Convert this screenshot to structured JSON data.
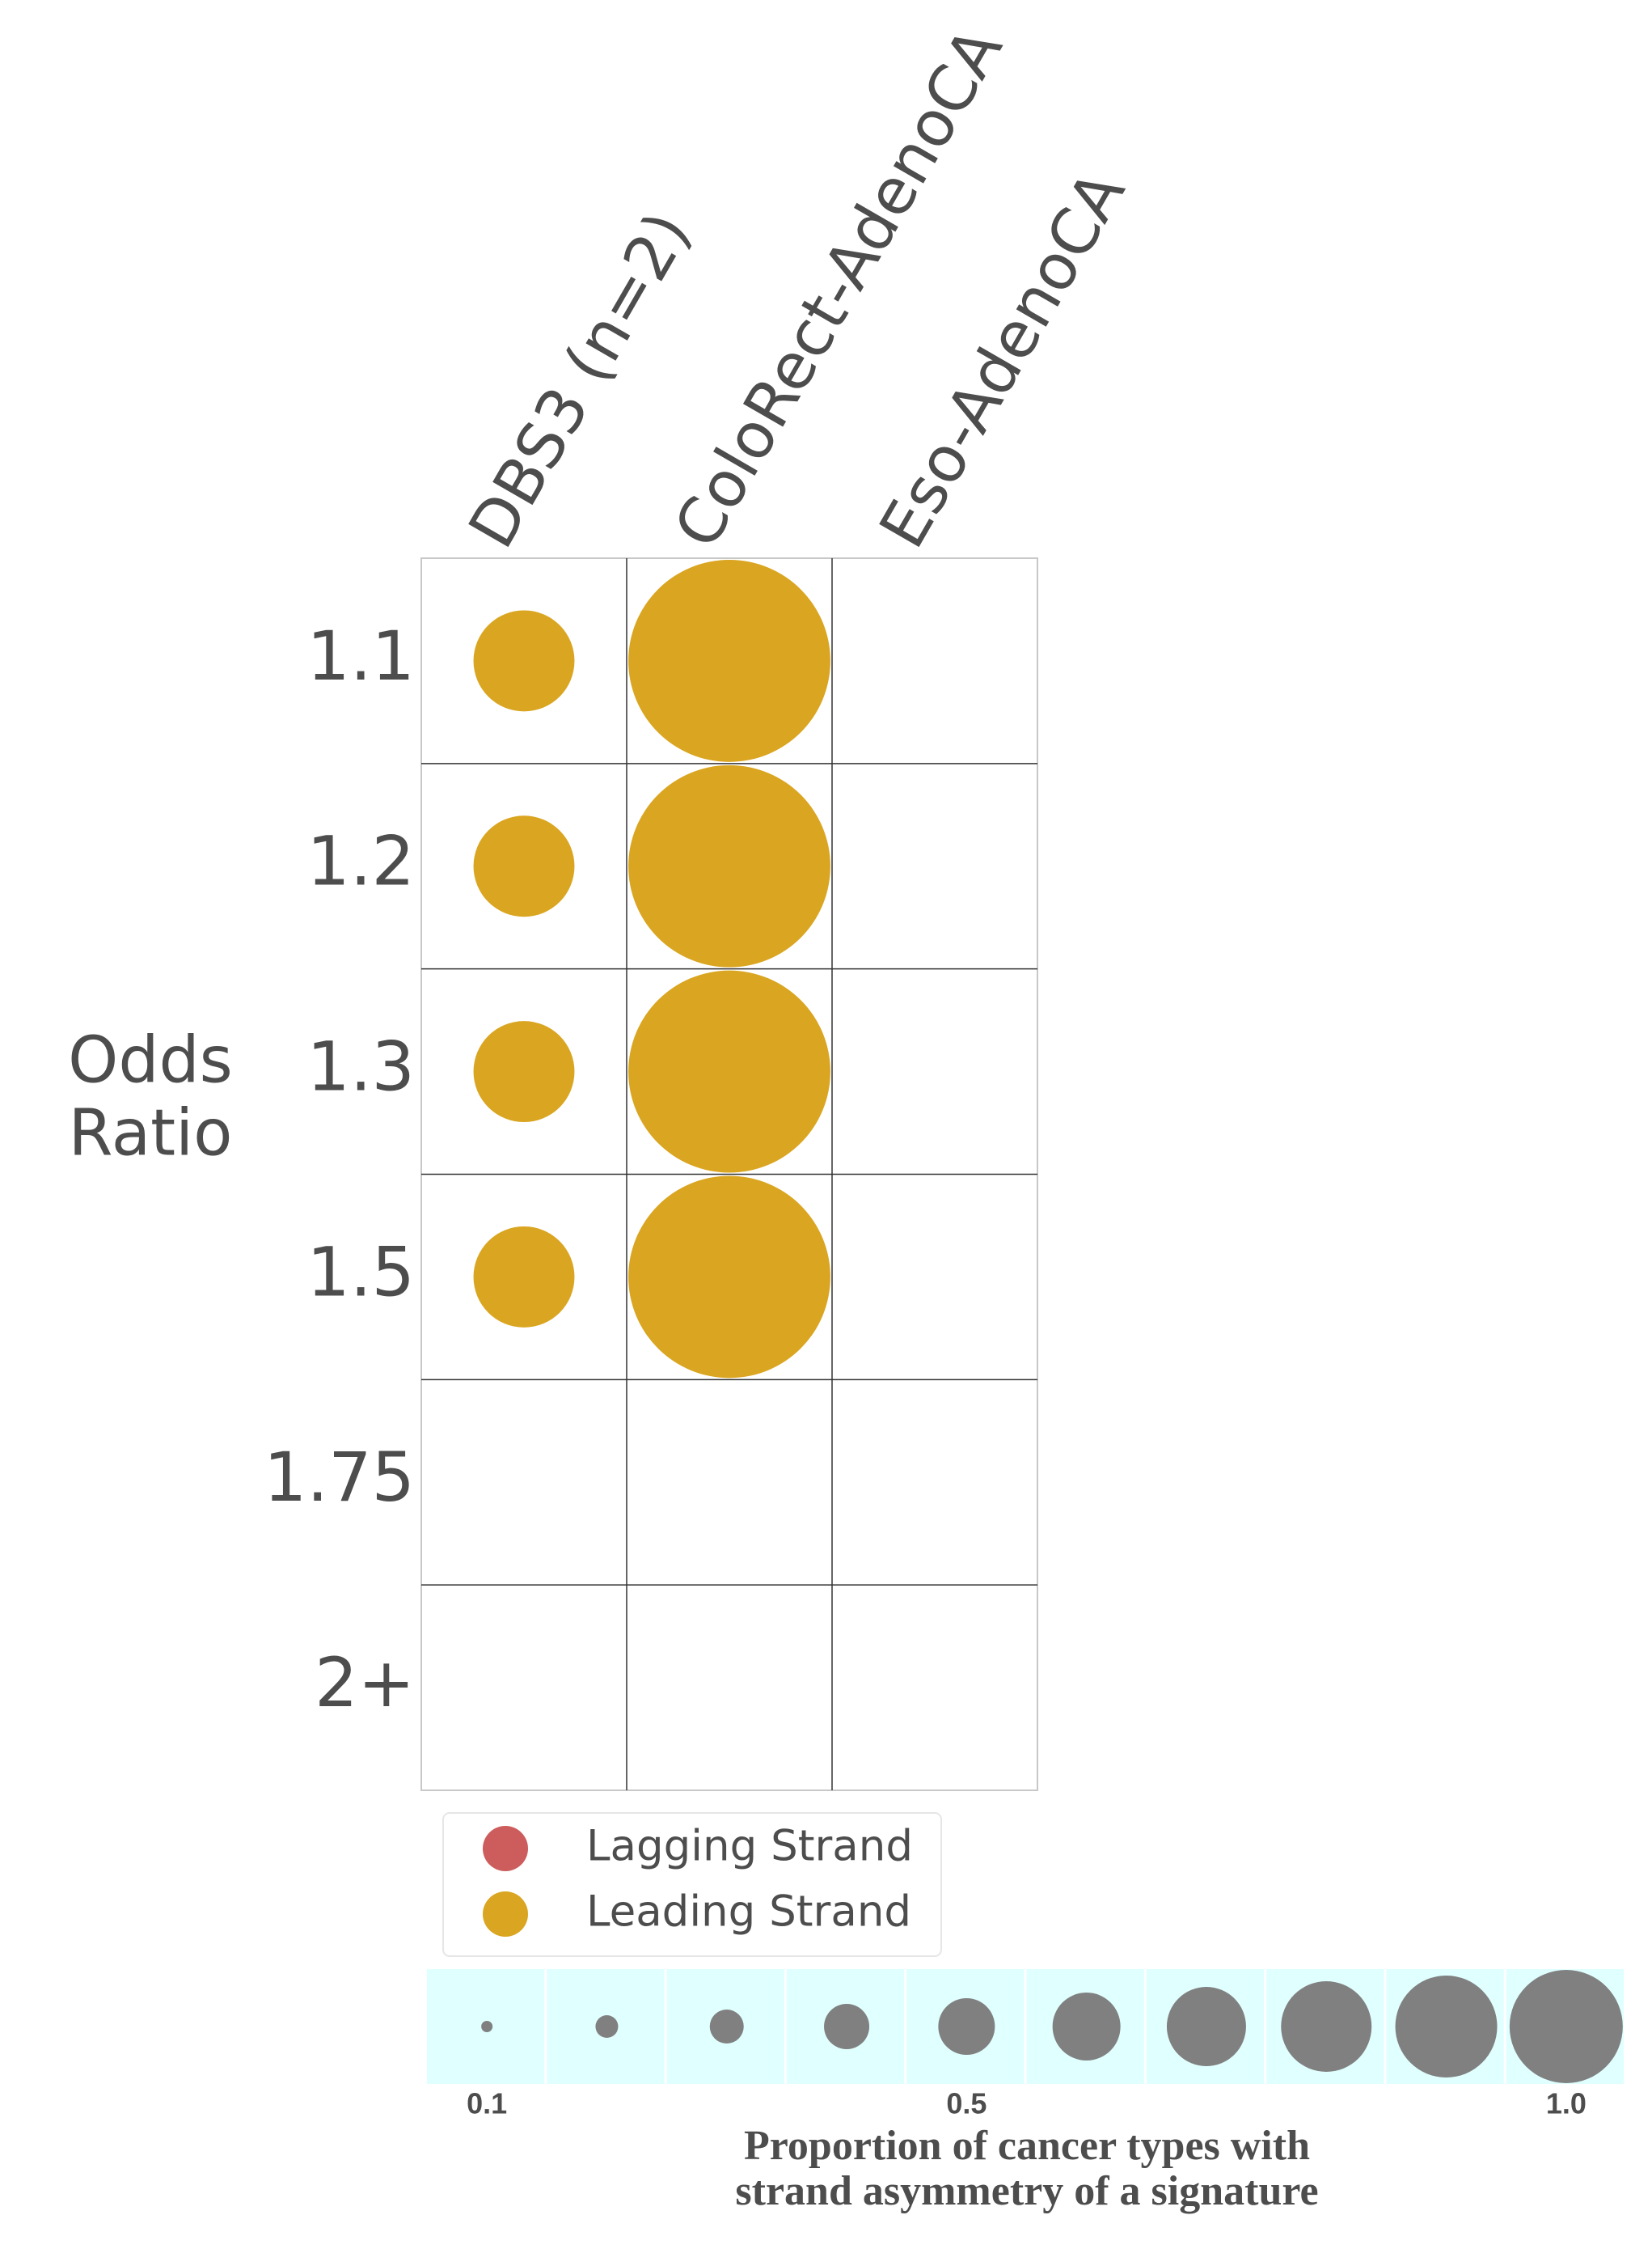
{
  "chart_data": {
    "type": "bubble",
    "columns": [
      "DBS3 (n=2)",
      "ColoRect-AdenoCA",
      "Eso-AdenoCA"
    ],
    "rows": [
      "1.1",
      "1.2",
      "1.3",
      "1.5",
      "1.75",
      "2+"
    ],
    "ylabel": [
      "Odds",
      "Ratio"
    ],
    "series": [
      {
        "name": "Lagging Strand",
        "color": "#cd5c5c",
        "values": [
          [
            null,
            null,
            null
          ],
          [
            null,
            null,
            null
          ],
          [
            null,
            null,
            null
          ],
          [
            null,
            null,
            null
          ],
          [
            null,
            null,
            null
          ],
          [
            null,
            null,
            null
          ]
        ]
      },
      {
        "name": "Leading Strand",
        "color": "#daa520",
        "values": [
          [
            0.5,
            1.0,
            null
          ],
          [
            0.5,
            1.0,
            null
          ],
          [
            0.5,
            1.0,
            null
          ],
          [
            0.5,
            1.0,
            null
          ],
          [
            null,
            null,
            null
          ],
          [
            null,
            null,
            null
          ]
        ]
      }
    ],
    "size_legend": {
      "title": [
        "Proportion of cancer types with",
        "strand asymmetry of a signature"
      ],
      "values": [
        0.1,
        0.2,
        0.3,
        0.4,
        0.5,
        0.6,
        0.7,
        0.8,
        0.9,
        1.0
      ],
      "ticks": [
        0.1,
        0.5,
        {
          "value": 1.0,
          "label": "1.0"
        }
      ],
      "color": "#808080",
      "background": "#e0ffff"
    }
  }
}
